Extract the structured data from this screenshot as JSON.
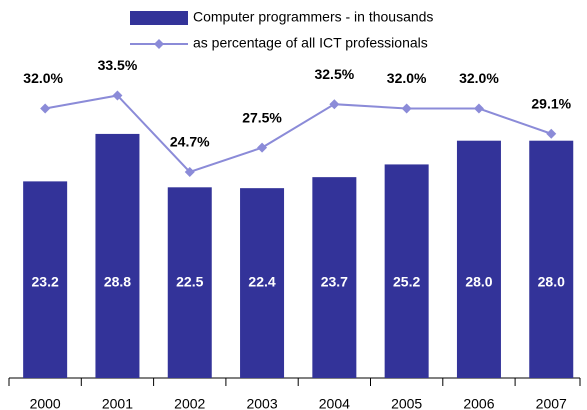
{
  "chart_data": {
    "type": "bar-line",
    "categories": [
      "2000",
      "2001",
      "2002",
      "2003",
      "2004",
      "2005",
      "2006",
      "2007"
    ],
    "series": [
      {
        "name": "Computer programmers - in thousands",
        "type": "bar",
        "color": "#333399",
        "values": [
          23.2,
          28.8,
          22.5,
          22.4,
          23.7,
          25.2,
          28.0,
          28.0
        ],
        "value_labels": [
          "23.2",
          "28.8",
          "22.5",
          "22.4",
          "23.7",
          "25.2",
          "28.0",
          "28.0"
        ]
      },
      {
        "name": "as percentage of all ICT professionals",
        "type": "line",
        "axis": "y2",
        "color": "#8b8bd8",
        "values": [
          32.0,
          33.5,
          24.7,
          27.5,
          32.5,
          32.0,
          32.0,
          29.1
        ],
        "value_labels": [
          "32.0%",
          "33.5%",
          "24.7%",
          "27.5%",
          "32.5%",
          "32.0%",
          "32.0%",
          "29.1%"
        ]
      }
    ],
    "ylim": [
      0,
      40
    ],
    "y2lim": [
      1,
      40
    ],
    "legend": "top"
  }
}
